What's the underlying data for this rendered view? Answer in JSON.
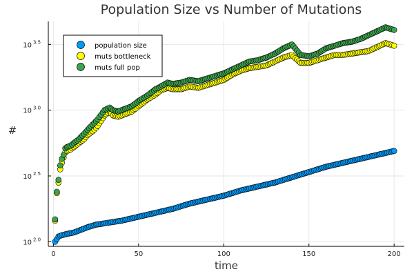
{
  "chart_data": {
    "type": "scatter",
    "title": "Population Size vs Number of Mutations",
    "xlabel": "time",
    "ylabel": "#",
    "xlim": [
      -3,
      206
    ],
    "ylim_log10": [
      1.965,
      3.675
    ],
    "y_scale": "log10",
    "grid": true,
    "legend_position": "top-left",
    "x_ticks": [
      {
        "value": 0,
        "label": "0"
      },
      {
        "value": 50,
        "label": "50"
      },
      {
        "value": 100,
        "label": "100"
      },
      {
        "value": 150,
        "label": "150"
      },
      {
        "value": 200,
        "label": "200"
      }
    ],
    "y_ticks": [
      {
        "value_log10": 2.0,
        "base": "10",
        "exp": "2.0"
      },
      {
        "value_log10": 2.5,
        "base": "10",
        "exp": "2.5"
      },
      {
        "value_log10": 3.0,
        "base": "10",
        "exp": "3.0"
      },
      {
        "value_log10": 3.5,
        "base": "10",
        "exp": "3.5"
      }
    ],
    "series": [
      {
        "name": "population size",
        "color": "#009AFA",
        "points_t_log10y": [
          [
            1,
            2.0
          ],
          [
            2,
            2.02
          ],
          [
            3,
            2.04
          ],
          [
            5,
            2.05
          ],
          [
            8,
            2.06
          ],
          [
            12,
            2.07
          ],
          [
            16,
            2.09
          ],
          [
            20,
            2.11
          ],
          [
            25,
            2.13
          ],
          [
            30,
            2.14
          ],
          [
            40,
            2.16
          ],
          [
            50,
            2.19
          ],
          [
            60,
            2.22
          ],
          [
            70,
            2.25
          ],
          [
            80,
            2.29
          ],
          [
            90,
            2.32
          ],
          [
            100,
            2.35
          ],
          [
            110,
            2.39
          ],
          [
            120,
            2.42
          ],
          [
            130,
            2.45
          ],
          [
            140,
            2.49
          ],
          [
            150,
            2.53
          ],
          [
            160,
            2.57
          ],
          [
            170,
            2.6
          ],
          [
            180,
            2.63
          ],
          [
            190,
            2.66
          ],
          [
            200,
            2.69
          ]
        ]
      },
      {
        "name": "muts bottleneck",
        "color": "#FFFF00",
        "points_t_log10y": [
          [
            1,
            2.16
          ],
          [
            2,
            2.37
          ],
          [
            3,
            2.45
          ],
          [
            4,
            2.55
          ],
          [
            5,
            2.6
          ],
          [
            6,
            2.64
          ],
          [
            7,
            2.68
          ],
          [
            8,
            2.69
          ],
          [
            10,
            2.7
          ],
          [
            12,
            2.72
          ],
          [
            15,
            2.75
          ],
          [
            18,
            2.78
          ],
          [
            20,
            2.81
          ],
          [
            23,
            2.84
          ],
          [
            26,
            2.88
          ],
          [
            30,
            2.96
          ],
          [
            33,
            2.99
          ],
          [
            35,
            2.96
          ],
          [
            38,
            2.95
          ],
          [
            42,
            2.97
          ],
          [
            46,
            2.99
          ],
          [
            50,
            3.03
          ],
          [
            55,
            3.08
          ],
          [
            60,
            3.12
          ],
          [
            63,
            3.15
          ],
          [
            67,
            3.17
          ],
          [
            70,
            3.16
          ],
          [
            75,
            3.16
          ],
          [
            80,
            3.18
          ],
          [
            85,
            3.17
          ],
          [
            90,
            3.19
          ],
          [
            95,
            3.21
          ],
          [
            100,
            3.23
          ],
          [
            105,
            3.27
          ],
          [
            110,
            3.3
          ],
          [
            115,
            3.32
          ],
          [
            120,
            3.33
          ],
          [
            125,
            3.34
          ],
          [
            130,
            3.37
          ],
          [
            135,
            3.4
          ],
          [
            140,
            3.42
          ],
          [
            145,
            3.36
          ],
          [
            150,
            3.36
          ],
          [
            155,
            3.38
          ],
          [
            160,
            3.4
          ],
          [
            165,
            3.42
          ],
          [
            170,
            3.42
          ],
          [
            175,
            3.43
          ],
          [
            180,
            3.44
          ],
          [
            185,
            3.45
          ],
          [
            190,
            3.48
          ],
          [
            195,
            3.51
          ],
          [
            200,
            3.49
          ]
        ]
      },
      {
        "name": "muts full pop",
        "color": "#3DA44D",
        "points_t_log10y": [
          [
            1,
            2.17
          ],
          [
            2,
            2.38
          ],
          [
            3,
            2.47
          ],
          [
            4,
            2.58
          ],
          [
            5,
            2.63
          ],
          [
            6,
            2.66
          ],
          [
            7,
            2.71
          ],
          [
            8,
            2.72
          ],
          [
            10,
            2.73
          ],
          [
            12,
            2.75
          ],
          [
            15,
            2.78
          ],
          [
            18,
            2.82
          ],
          [
            20,
            2.85
          ],
          [
            23,
            2.89
          ],
          [
            26,
            2.93
          ],
          [
            30,
            3.0
          ],
          [
            33,
            3.02
          ],
          [
            35,
            3.0
          ],
          [
            38,
            2.99
          ],
          [
            42,
            3.01
          ],
          [
            46,
            3.03
          ],
          [
            50,
            3.07
          ],
          [
            55,
            3.11
          ],
          [
            60,
            3.16
          ],
          [
            63,
            3.18
          ],
          [
            67,
            3.21
          ],
          [
            70,
            3.2
          ],
          [
            75,
            3.21
          ],
          [
            80,
            3.23
          ],
          [
            85,
            3.22
          ],
          [
            90,
            3.24
          ],
          [
            95,
            3.26
          ],
          [
            100,
            3.28
          ],
          [
            105,
            3.31
          ],
          [
            110,
            3.34
          ],
          [
            115,
            3.37
          ],
          [
            120,
            3.38
          ],
          [
            125,
            3.4
          ],
          [
            130,
            3.43
          ],
          [
            135,
            3.47
          ],
          [
            140,
            3.5
          ],
          [
            145,
            3.42
          ],
          [
            150,
            3.41
          ],
          [
            155,
            3.43
          ],
          [
            160,
            3.47
          ],
          [
            165,
            3.49
          ],
          [
            170,
            3.51
          ],
          [
            175,
            3.52
          ],
          [
            180,
            3.54
          ],
          [
            185,
            3.57
          ],
          [
            190,
            3.6
          ],
          [
            195,
            3.63
          ],
          [
            200,
            3.61
          ]
        ]
      }
    ]
  }
}
